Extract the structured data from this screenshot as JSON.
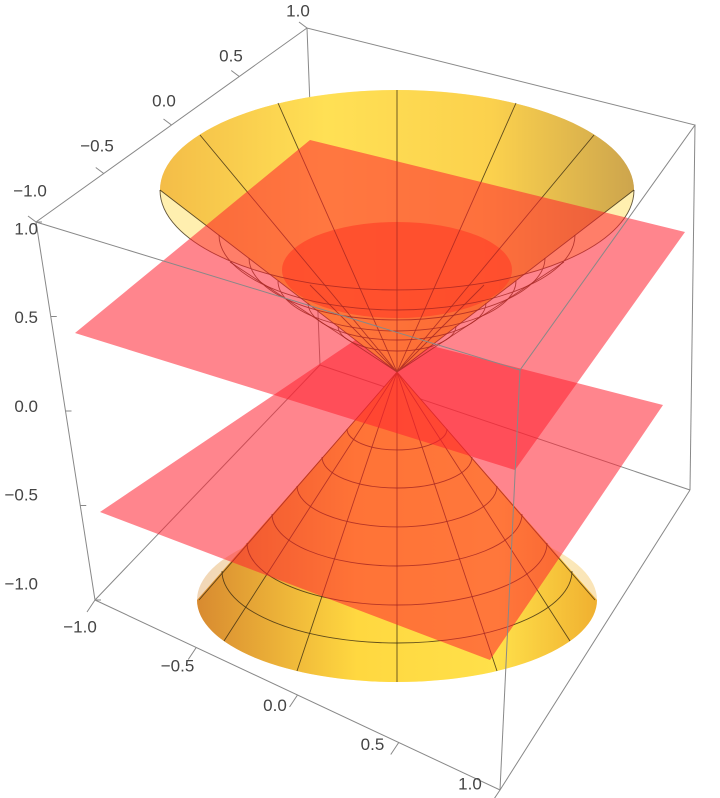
{
  "chart_data": {
    "type": "surface3d",
    "xlim": [
      -1,
      1
    ],
    "ylim": [
      -1,
      1
    ],
    "zlim": [
      -1,
      1
    ],
    "xticks": [
      {
        "value": -1,
        "label": "−1.0"
      },
      {
        "value": -0.5,
        "label": "−0.5"
      },
      {
        "value": 0,
        "label": "0.0"
      },
      {
        "value": 0.5,
        "label": "0.5"
      },
      {
        "value": 1,
        "label": "1.0"
      }
    ],
    "yticks": [
      {
        "value": -1,
        "label": "−1.0"
      },
      {
        "value": -0.5,
        "label": "−0.5"
      },
      {
        "value": 0,
        "label": "0.0"
      },
      {
        "value": 0.5,
        "label": "0.5"
      },
      {
        "value": 1,
        "label": "1.0"
      }
    ],
    "zticks": [
      {
        "value": -1,
        "label": "−1.0"
      },
      {
        "value": -0.5,
        "label": "−0.5"
      },
      {
        "value": 0,
        "label": "0.0"
      },
      {
        "value": 0.5,
        "label": "0.5"
      },
      {
        "value": 1,
        "label": "1.0"
      }
    ]
  }
}
